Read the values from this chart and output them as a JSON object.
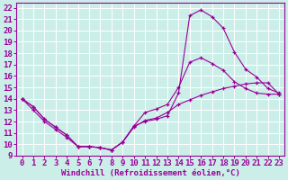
{
  "xlabel": "Windchill (Refroidissement éolien,°C)",
  "bg_color": "#cceee8",
  "line_color": "#990099",
  "grid_color": "#ffffff",
  "xlim": [
    -0.5,
    23.5
  ],
  "ylim": [
    9,
    22.4
  ],
  "xticks": [
    0,
    1,
    2,
    3,
    4,
    5,
    6,
    7,
    8,
    9,
    10,
    11,
    12,
    13,
    14,
    15,
    16,
    17,
    18,
    19,
    20,
    21,
    22,
    23
  ],
  "yticks": [
    9,
    10,
    11,
    12,
    13,
    14,
    15,
    16,
    17,
    18,
    19,
    20,
    21,
    22
  ],
  "line1_x": [
    0,
    1,
    2,
    3,
    4,
    5,
    6,
    7,
    8,
    9,
    10,
    11,
    12,
    13,
    14,
    15,
    16,
    17,
    18,
    19,
    20,
    21,
    22,
    23
  ],
  "line1_y": [
    14.0,
    13.3,
    12.2,
    11.5,
    10.8,
    9.8,
    9.8,
    9.7,
    9.5,
    10.2,
    11.6,
    12.0,
    12.2,
    12.5,
    14.5,
    21.3,
    21.8,
    21.2,
    20.2,
    18.1,
    16.6,
    15.9,
    14.9,
    14.5
  ],
  "line2_x": [
    0,
    1,
    2,
    3,
    4,
    5,
    6,
    7,
    8,
    9,
    10,
    11,
    12,
    13,
    14,
    15,
    16,
    17,
    18,
    19,
    20,
    21,
    22,
    23
  ],
  "line2_y": [
    14.0,
    13.3,
    12.2,
    11.5,
    10.8,
    9.8,
    9.8,
    9.7,
    9.5,
    10.2,
    11.6,
    12.8,
    13.1,
    13.5,
    15.0,
    17.2,
    17.6,
    17.1,
    16.5,
    15.5,
    14.9,
    14.5,
    14.4,
    14.4
  ],
  "line3_x": [
    0,
    1,
    2,
    3,
    4,
    5,
    6,
    7,
    8,
    9,
    10,
    11,
    12,
    13,
    14,
    15,
    16,
    17,
    18,
    19,
    20,
    21,
    22,
    23
  ],
  "line3_y": [
    14.0,
    13.0,
    12.0,
    11.3,
    10.6,
    9.8,
    9.8,
    9.7,
    9.5,
    10.2,
    11.5,
    12.1,
    12.3,
    12.8,
    13.5,
    13.9,
    14.3,
    14.6,
    14.9,
    15.1,
    15.3,
    15.4,
    15.4,
    14.4
  ],
  "tick_fontsize": 6.5,
  "xlabel_fontsize": 6.5
}
